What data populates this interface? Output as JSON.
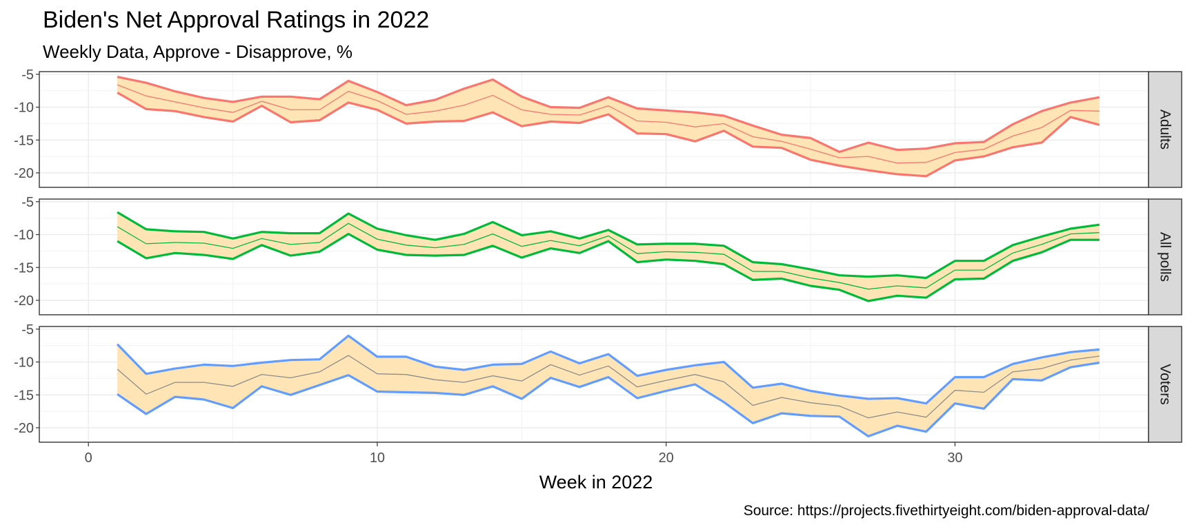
{
  "chart_data": {
    "type": "area",
    "title": "Biden's Net Approval Ratings in 2022",
    "subtitle": "Weekly Data, Approve - Disapprove, %",
    "xlabel": "Week in 2022",
    "ylabel": "",
    "caption": "Source: https://projects.fivethirtyeight.com/biden-approval-data/",
    "x": [
      1,
      2,
      3,
      4,
      5,
      6,
      7,
      8,
      9,
      10,
      11,
      12,
      13,
      14,
      15,
      16,
      17,
      18,
      19,
      20,
      21,
      22,
      23,
      24,
      25,
      26,
      27,
      28,
      29,
      30,
      31,
      32,
      33,
      34,
      35
    ],
    "xlim": [
      -1.7,
      36.7
    ],
    "ylim": [
      -22.2,
      -4.6
    ],
    "x_ticks": [
      0,
      10,
      20,
      30
    ],
    "y_ticks": [
      -5,
      -10,
      -15,
      -20
    ],
    "grid": true,
    "band_fill": "#FFE4B5",
    "panels": [
      {
        "name": "Adults",
        "color": "#F8766D",
        "mid_color": "#F8766D",
        "upper": [
          -5.4,
          -6.3,
          -7.6,
          -8.6,
          -9.2,
          -8.4,
          -8.4,
          -8.8,
          -6.0,
          -7.7,
          -9.7,
          -8.9,
          -7.2,
          -5.8,
          -8.4,
          -10.0,
          -10.1,
          -8.5,
          -10.2,
          -10.5,
          -10.8,
          -11.3,
          -12.8,
          -14.2,
          -14.7,
          -16.8,
          -15.4,
          -16.5,
          -16.3,
          -15.5,
          -15.3,
          -12.6,
          -10.6,
          -9.3,
          -8.5
        ],
        "middle": [
          -6.6,
          -8.3,
          -9.2,
          -10.1,
          -10.8,
          -9.1,
          -10.4,
          -10.4,
          -7.6,
          -9.0,
          -11.1,
          -10.6,
          -9.7,
          -8.2,
          -10.4,
          -11.1,
          -11.2,
          -9.8,
          -12.1,
          -12.3,
          -13.0,
          -12.5,
          -14.5,
          -15.2,
          -16.4,
          -17.7,
          -17.5,
          -18.5,
          -18.4,
          -16.9,
          -16.4,
          -14.4,
          -13.1,
          -10.5,
          -10.6
        ],
        "lower": [
          -7.8,
          -10.3,
          -10.6,
          -11.5,
          -12.2,
          -9.8,
          -12.3,
          -12.0,
          -9.3,
          -10.4,
          -12.5,
          -12.2,
          -12.1,
          -10.8,
          -12.9,
          -12.2,
          -12.4,
          -11.1,
          -14.0,
          -14.1,
          -15.2,
          -13.6,
          -16.0,
          -16.2,
          -18.0,
          -18.9,
          -19.6,
          -20.2,
          -20.5,
          -18.1,
          -17.5,
          -16.1,
          -15.4,
          -11.5,
          -12.7
        ]
      },
      {
        "name": "All polls",
        "color": "#00BA38",
        "mid_color": "#00BA38",
        "upper": [
          -6.6,
          -9.2,
          -9.5,
          -9.6,
          -10.6,
          -9.6,
          -9.8,
          -9.8,
          -6.8,
          -9.1,
          -10.1,
          -10.8,
          -9.9,
          -8.1,
          -10.1,
          -9.5,
          -10.6,
          -9.3,
          -11.5,
          -11.4,
          -11.4,
          -11.7,
          -14.2,
          -14.5,
          -15.3,
          -16.2,
          -16.4,
          -16.2,
          -16.6,
          -14.0,
          -14.0,
          -11.6,
          -10.3,
          -9.1,
          -8.5
        ],
        "middle": [
          -8.8,
          -11.4,
          -11.2,
          -11.3,
          -12.1,
          -10.6,
          -11.5,
          -11.2,
          -8.3,
          -10.7,
          -11.6,
          -12.0,
          -11.5,
          -9.9,
          -11.8,
          -10.9,
          -11.7,
          -10.2,
          -12.9,
          -12.6,
          -12.7,
          -13.0,
          -15.6,
          -15.6,
          -16.6,
          -17.3,
          -18.3,
          -17.8,
          -18.1,
          -15.4,
          -15.4,
          -12.8,
          -11.5,
          -9.9,
          -9.7
        ],
        "lower": [
          -11.0,
          -13.6,
          -12.8,
          -13.1,
          -13.7,
          -11.6,
          -13.2,
          -12.6,
          -9.9,
          -12.3,
          -13.1,
          -13.2,
          -13.1,
          -11.7,
          -13.5,
          -12.1,
          -12.8,
          -11.0,
          -14.2,
          -13.8,
          -14.0,
          -14.5,
          -16.9,
          -16.7,
          -17.8,
          -18.4,
          -20.1,
          -19.3,
          -19.6,
          -16.8,
          -16.7,
          -14.0,
          -12.7,
          -10.8,
          -10.8
        ]
      },
      {
        "name": "Voters",
        "color": "#619CFF",
        "mid_color": "#8C8C8C",
        "upper": [
          -7.3,
          -11.8,
          -11.0,
          -10.4,
          -10.6,
          -10.1,
          -9.7,
          -9.6,
          -6.0,
          -9.2,
          -9.2,
          -10.7,
          -11.2,
          -10.4,
          -10.3,
          -8.4,
          -10.2,
          -8.8,
          -12.1,
          -11.2,
          -10.5,
          -10.0,
          -13.9,
          -13.3,
          -14.4,
          -15.1,
          -15.6,
          -15.5,
          -16.3,
          -12.3,
          -12.3,
          -10.3,
          -9.3,
          -8.5,
          -8.1
        ],
        "middle": [
          -11.1,
          -14.9,
          -13.1,
          -13.1,
          -13.7,
          -11.9,
          -12.4,
          -11.5,
          -9.0,
          -11.8,
          -11.9,
          -12.7,
          -13.1,
          -12.1,
          -12.9,
          -10.4,
          -12.0,
          -10.6,
          -13.8,
          -12.8,
          -11.9,
          -13.0,
          -16.6,
          -15.4,
          -16.2,
          -16.7,
          -18.5,
          -17.6,
          -18.4,
          -14.3,
          -14.6,
          -11.5,
          -11.0,
          -9.7,
          -9.1
        ],
        "lower": [
          -14.9,
          -17.9,
          -15.3,
          -15.7,
          -17.0,
          -13.7,
          -15.0,
          -13.5,
          -12.0,
          -14.5,
          -14.6,
          -14.7,
          -15.0,
          -13.7,
          -15.6,
          -12.4,
          -13.8,
          -12.3,
          -15.5,
          -14.4,
          -13.4,
          -16.1,
          -19.3,
          -17.8,
          -18.2,
          -18.3,
          -21.3,
          -19.7,
          -20.6,
          -16.3,
          -17.1,
          -12.6,
          -12.8,
          -10.8,
          -10.1
        ]
      }
    ]
  }
}
